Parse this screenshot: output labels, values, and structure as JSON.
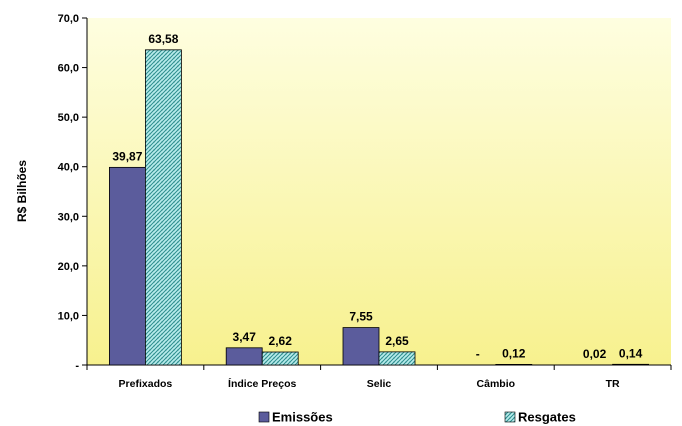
{
  "colors": {
    "plot_background_top": "#fefee0",
    "plot_background_bottom": "#f7f18e",
    "emissoes": "#5b5c9c",
    "resgates_fill": "#b8ecec",
    "resgates_hatch": "#2c8c8c"
  },
  "chart_data": {
    "type": "bar",
    "title": "",
    "xlabel": "",
    "ylabel": "R$ Bilhões",
    "ylim": [
      0,
      70
    ],
    "yticks": [
      "-",
      "10,0",
      "20,0",
      "30,0",
      "40,0",
      "50,0",
      "60,0",
      "70,0"
    ],
    "grid": false,
    "legend_position": "bottom",
    "categories": [
      "Prefixados",
      "Índice Preços",
      "Selic",
      "Câmbio",
      "TR"
    ],
    "series": [
      {
        "name": "Emissões",
        "values": [
          39.87,
          3.47,
          7.55,
          0,
          0.02
        ],
        "labels": [
          "39,87",
          "3,47",
          "7,55",
          "-",
          "0,02"
        ]
      },
      {
        "name": "Resgates",
        "values": [
          63.58,
          2.62,
          2.65,
          0.12,
          0.14
        ],
        "labels": [
          "63,58",
          "2,62",
          "2,65",
          "0,12",
          "0,14"
        ]
      }
    ]
  }
}
